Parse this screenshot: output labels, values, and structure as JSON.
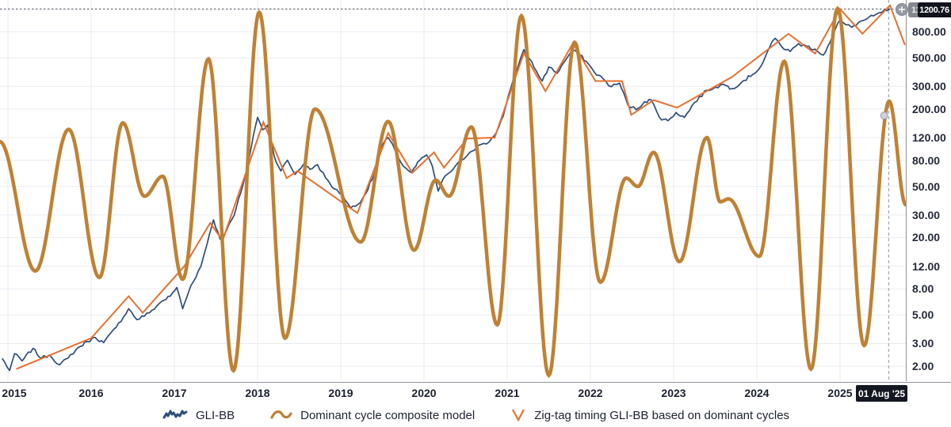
{
  "chart": {
    "right_axis": {
      "current_price_label": "1200.76",
      "secondary_label_text": "11",
      "ticks": [
        "800.00",
        "500.00",
        "300.00",
        "200.00",
        "120.00",
        "80.00",
        "50.00",
        "30.00",
        "20.00",
        "12.00",
        "8.00",
        "5.00",
        "3.00",
        "2.00"
      ]
    },
    "time_axis": {
      "labels": [
        "2015",
        "2016",
        "2017",
        "2018",
        "2019",
        "2020",
        "2021",
        "2022",
        "2023",
        "2024",
        "2025"
      ],
      "crosshair_date_label": "01 Aug '25"
    }
  },
  "chart_data": {
    "type": "line",
    "y_scale": "log",
    "grid": true,
    "legend_position": "bottom",
    "x_tick_years": [
      2015,
      2016,
      2017,
      2018,
      2019,
      2020,
      2021,
      2022,
      2023,
      2024,
      2025
    ],
    "y_ticks": [
      800,
      500,
      300,
      200,
      120,
      80,
      50,
      30,
      20,
      12,
      8,
      5,
      3,
      2
    ],
    "x_range": [
      2014.9,
      2025.85
    ],
    "last_price": 1200.76,
    "last_bar_date": "01 Aug '25",
    "last_bar_year": 2025.585,
    "cycle_marker": {
      "year": 2025.53,
      "value": 178
    },
    "series": [
      {
        "name": "GLI-BB",
        "color": "#2d4d7c",
        "style": "price",
        "width": 1.7,
        "points": [
          [
            2014.93,
            2.3
          ],
          [
            2015.02,
            1.85
          ],
          [
            2015.08,
            2.5
          ],
          [
            2015.17,
            2.2
          ],
          [
            2015.3,
            2.75
          ],
          [
            2015.4,
            2.3
          ],
          [
            2015.5,
            2.45
          ],
          [
            2015.62,
            2.05
          ],
          [
            2015.72,
            2.3
          ],
          [
            2015.82,
            2.7
          ],
          [
            2015.95,
            3.1
          ],
          [
            2016.05,
            3.35
          ],
          [
            2016.15,
            3.05
          ],
          [
            2016.3,
            4.0
          ],
          [
            2016.45,
            5.6
          ],
          [
            2016.55,
            4.6
          ],
          [
            2016.7,
            5.2
          ],
          [
            2016.85,
            6.4
          ],
          [
            2016.95,
            7.0
          ],
          [
            2017.03,
            8.2
          ],
          [
            2017.1,
            5.6
          ],
          [
            2017.2,
            8.5
          ],
          [
            2017.32,
            12
          ],
          [
            2017.42,
            21
          ],
          [
            2017.47,
            27.5
          ],
          [
            2017.55,
            19.5
          ],
          [
            2017.63,
            23
          ],
          [
            2017.72,
            30
          ],
          [
            2017.8,
            45
          ],
          [
            2017.88,
            72
          ],
          [
            2017.95,
            125
          ],
          [
            2018.0,
            172
          ],
          [
            2018.06,
            138
          ],
          [
            2018.12,
            150
          ],
          [
            2018.2,
            86
          ],
          [
            2018.28,
            66
          ],
          [
            2018.36,
            80
          ],
          [
            2018.45,
            62
          ],
          [
            2018.55,
            74
          ],
          [
            2018.63,
            68
          ],
          [
            2018.72,
            74
          ],
          [
            2018.82,
            58
          ],
          [
            2018.92,
            48
          ],
          [
            2019.02,
            43
          ],
          [
            2019.12,
            34
          ],
          [
            2019.2,
            36
          ],
          [
            2019.3,
            44
          ],
          [
            2019.4,
            62
          ],
          [
            2019.5,
            105
          ],
          [
            2019.57,
            120
          ],
          [
            2019.65,
            96
          ],
          [
            2019.75,
            72
          ],
          [
            2019.85,
            64
          ],
          [
            2019.95,
            80
          ],
          [
            2020.03,
            88
          ],
          [
            2020.1,
            72
          ],
          [
            2020.17,
            46
          ],
          [
            2020.25,
            60
          ],
          [
            2020.35,
            68
          ],
          [
            2020.45,
            80
          ],
          [
            2020.55,
            92
          ],
          [
            2020.65,
            104
          ],
          [
            2020.75,
            107
          ],
          [
            2020.85,
            125
          ],
          [
            2020.95,
            175
          ],
          [
            2021.05,
            300
          ],
          [
            2021.13,
            430
          ],
          [
            2021.2,
            580
          ],
          [
            2021.27,
            490
          ],
          [
            2021.35,
            395
          ],
          [
            2021.42,
            330
          ],
          [
            2021.5,
            425
          ],
          [
            2021.6,
            380
          ],
          [
            2021.68,
            460
          ],
          [
            2021.78,
            570
          ],
          [
            2021.85,
            545
          ],
          [
            2021.95,
            470
          ],
          [
            2022.05,
            385
          ],
          [
            2022.15,
            345
          ],
          [
            2022.25,
            298
          ],
          [
            2022.35,
            318
          ],
          [
            2022.45,
            215
          ],
          [
            2022.55,
            198
          ],
          [
            2022.65,
            228
          ],
          [
            2022.73,
            236
          ],
          [
            2022.83,
            172
          ],
          [
            2022.93,
            162
          ],
          [
            2023.03,
            188
          ],
          [
            2023.13,
            172
          ],
          [
            2023.25,
            225
          ],
          [
            2023.4,
            280
          ],
          [
            2023.5,
            295
          ],
          [
            2023.6,
            312
          ],
          [
            2023.7,
            288
          ],
          [
            2023.82,
            325
          ],
          [
            2023.95,
            372
          ],
          [
            2024.05,
            430
          ],
          [
            2024.15,
            600
          ],
          [
            2024.22,
            710
          ],
          [
            2024.3,
            610
          ],
          [
            2024.4,
            560
          ],
          [
            2024.5,
            645
          ],
          [
            2024.6,
            615
          ],
          [
            2024.7,
            585
          ],
          [
            2024.8,
            525
          ],
          [
            2024.88,
            660
          ],
          [
            2024.95,
            860
          ],
          [
            2025.0,
            980
          ],
          [
            2025.07,
            905
          ],
          [
            2025.14,
            865
          ],
          [
            2025.22,
            940
          ],
          [
            2025.3,
            990
          ],
          [
            2025.4,
            1060
          ],
          [
            2025.5,
            1130
          ],
          [
            2025.6,
            1200.76
          ]
        ]
      },
      {
        "name": "Dominant cycle composite model",
        "color": "#bf8134",
        "style": "smooth-cycle",
        "width": 4.5,
        "points": [
          [
            2014.9,
            112
          ],
          [
            2015.33,
            11
          ],
          [
            2015.73,
            139
          ],
          [
            2016.1,
            9.8
          ],
          [
            2016.38,
            156
          ],
          [
            2016.64,
            42
          ],
          [
            2016.86,
            60
          ],
          [
            2017.1,
            9.5
          ],
          [
            2017.41,
            490
          ],
          [
            2017.71,
            1.85
          ],
          [
            2018.02,
            1130
          ],
          [
            2018.33,
            3.3
          ],
          [
            2018.69,
            200
          ],
          [
            2019.24,
            18.5
          ],
          [
            2019.57,
            160
          ],
          [
            2019.88,
            16
          ],
          [
            2020.14,
            56
          ],
          [
            2020.3,
            42
          ],
          [
            2020.57,
            145
          ],
          [
            2020.88,
            4.2
          ],
          [
            2021.17,
            1060
          ],
          [
            2021.5,
            1.7
          ],
          [
            2021.81,
            660
          ],
          [
            2022.12,
            9
          ],
          [
            2022.43,
            58
          ],
          [
            2022.57,
            50
          ],
          [
            2022.76,
            92
          ],
          [
            2023.07,
            13
          ],
          [
            2023.4,
            120
          ],
          [
            2023.56,
            38
          ],
          [
            2023.66,
            40
          ],
          [
            2024.03,
            14.3
          ],
          [
            2024.33,
            470
          ],
          [
            2024.65,
            1.9
          ],
          [
            2024.97,
            1210
          ],
          [
            2025.29,
            2.9
          ],
          [
            2025.59,
            230
          ],
          [
            2025.79,
            36
          ]
        ]
      },
      {
        "name": "Zig-tag timing GLI-BB based on dominant cycles",
        "color": "#e7702f",
        "style": "zigzag",
        "width": 2,
        "points": [
          [
            2015.1,
            1.9
          ],
          [
            2016.0,
            3.3
          ],
          [
            2016.45,
            7.0
          ],
          [
            2016.62,
            5.2
          ],
          [
            2017.12,
            12
          ],
          [
            2017.43,
            26
          ],
          [
            2017.58,
            19
          ],
          [
            2018.07,
            158
          ],
          [
            2018.35,
            58
          ],
          [
            2018.48,
            66
          ],
          [
            2019.2,
            31
          ],
          [
            2019.57,
            130
          ],
          [
            2019.86,
            64
          ],
          [
            2020.12,
            92
          ],
          [
            2020.24,
            70
          ],
          [
            2020.52,
            118
          ],
          [
            2020.85,
            120
          ],
          [
            2021.2,
            545
          ],
          [
            2021.46,
            275
          ],
          [
            2021.79,
            650
          ],
          [
            2022.06,
            330
          ],
          [
            2022.38,
            330
          ],
          [
            2022.49,
            180
          ],
          [
            2022.76,
            235
          ],
          [
            2023.04,
            205
          ],
          [
            2023.7,
            355
          ],
          [
            2024.38,
            770
          ],
          [
            2024.7,
            540
          ],
          [
            2025.0,
            1200
          ],
          [
            2025.27,
            770
          ],
          [
            2025.6,
            1280
          ],
          [
            2025.78,
            630
          ]
        ]
      }
    ],
    "colors": {
      "grid": "#e8ebf1",
      "axis_border": "#8f929c",
      "price_level_dash": "#4a4f5e",
      "crosshair_dash": "#a7aab2",
      "marker_fill": "#d0d2d8",
      "marker_stroke": "#989ba3"
    }
  }
}
